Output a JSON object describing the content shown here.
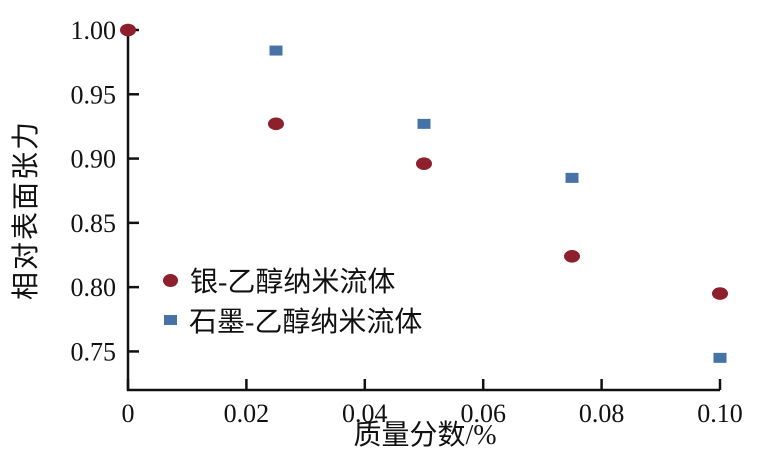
{
  "chart_data": {
    "type": "scatter",
    "title": "",
    "xlabel": "质量分数/%",
    "ylabel": "相对表面张力",
    "xlim": [
      0,
      0.1
    ],
    "ylim": [
      0.72,
      1.0
    ],
    "x_ticks": [
      0,
      0.02,
      0.04,
      0.06,
      0.08,
      0.1
    ],
    "x_tick_labels": [
      "0",
      "0.02",
      "0.04",
      "0.06",
      "0.08",
      "0.10"
    ],
    "y_ticks": [
      0.75,
      0.8,
      0.85,
      0.9,
      0.95,
      1.0
    ],
    "y_tick_labels": [
      "0.75",
      "0.80",
      "0.85",
      "0.90",
      "0.95",
      "1.00"
    ],
    "grid": false,
    "legend_position": "inside-lower-left",
    "series": [
      {
        "name": "银-乙醇纳米流体",
        "marker": "circle",
        "color": "#8e1f2d",
        "points": [
          [
            0,
            1.0
          ],
          [
            0.025,
            0.927
          ],
          [
            0.05,
            0.896
          ],
          [
            0.075,
            0.824
          ],
          [
            0.1,
            0.795
          ]
        ]
      },
      {
        "name": "石墨-乙醇纳米流体",
        "marker": "square",
        "color": "#4673a6",
        "points": [
          [
            0.025,
            0.984
          ],
          [
            0.05,
            0.927
          ],
          [
            0.075,
            0.885
          ],
          [
            0.1,
            0.745
          ]
        ]
      }
    ]
  },
  "colors": {
    "axis": "#111111",
    "background": "#ffffff"
  }
}
